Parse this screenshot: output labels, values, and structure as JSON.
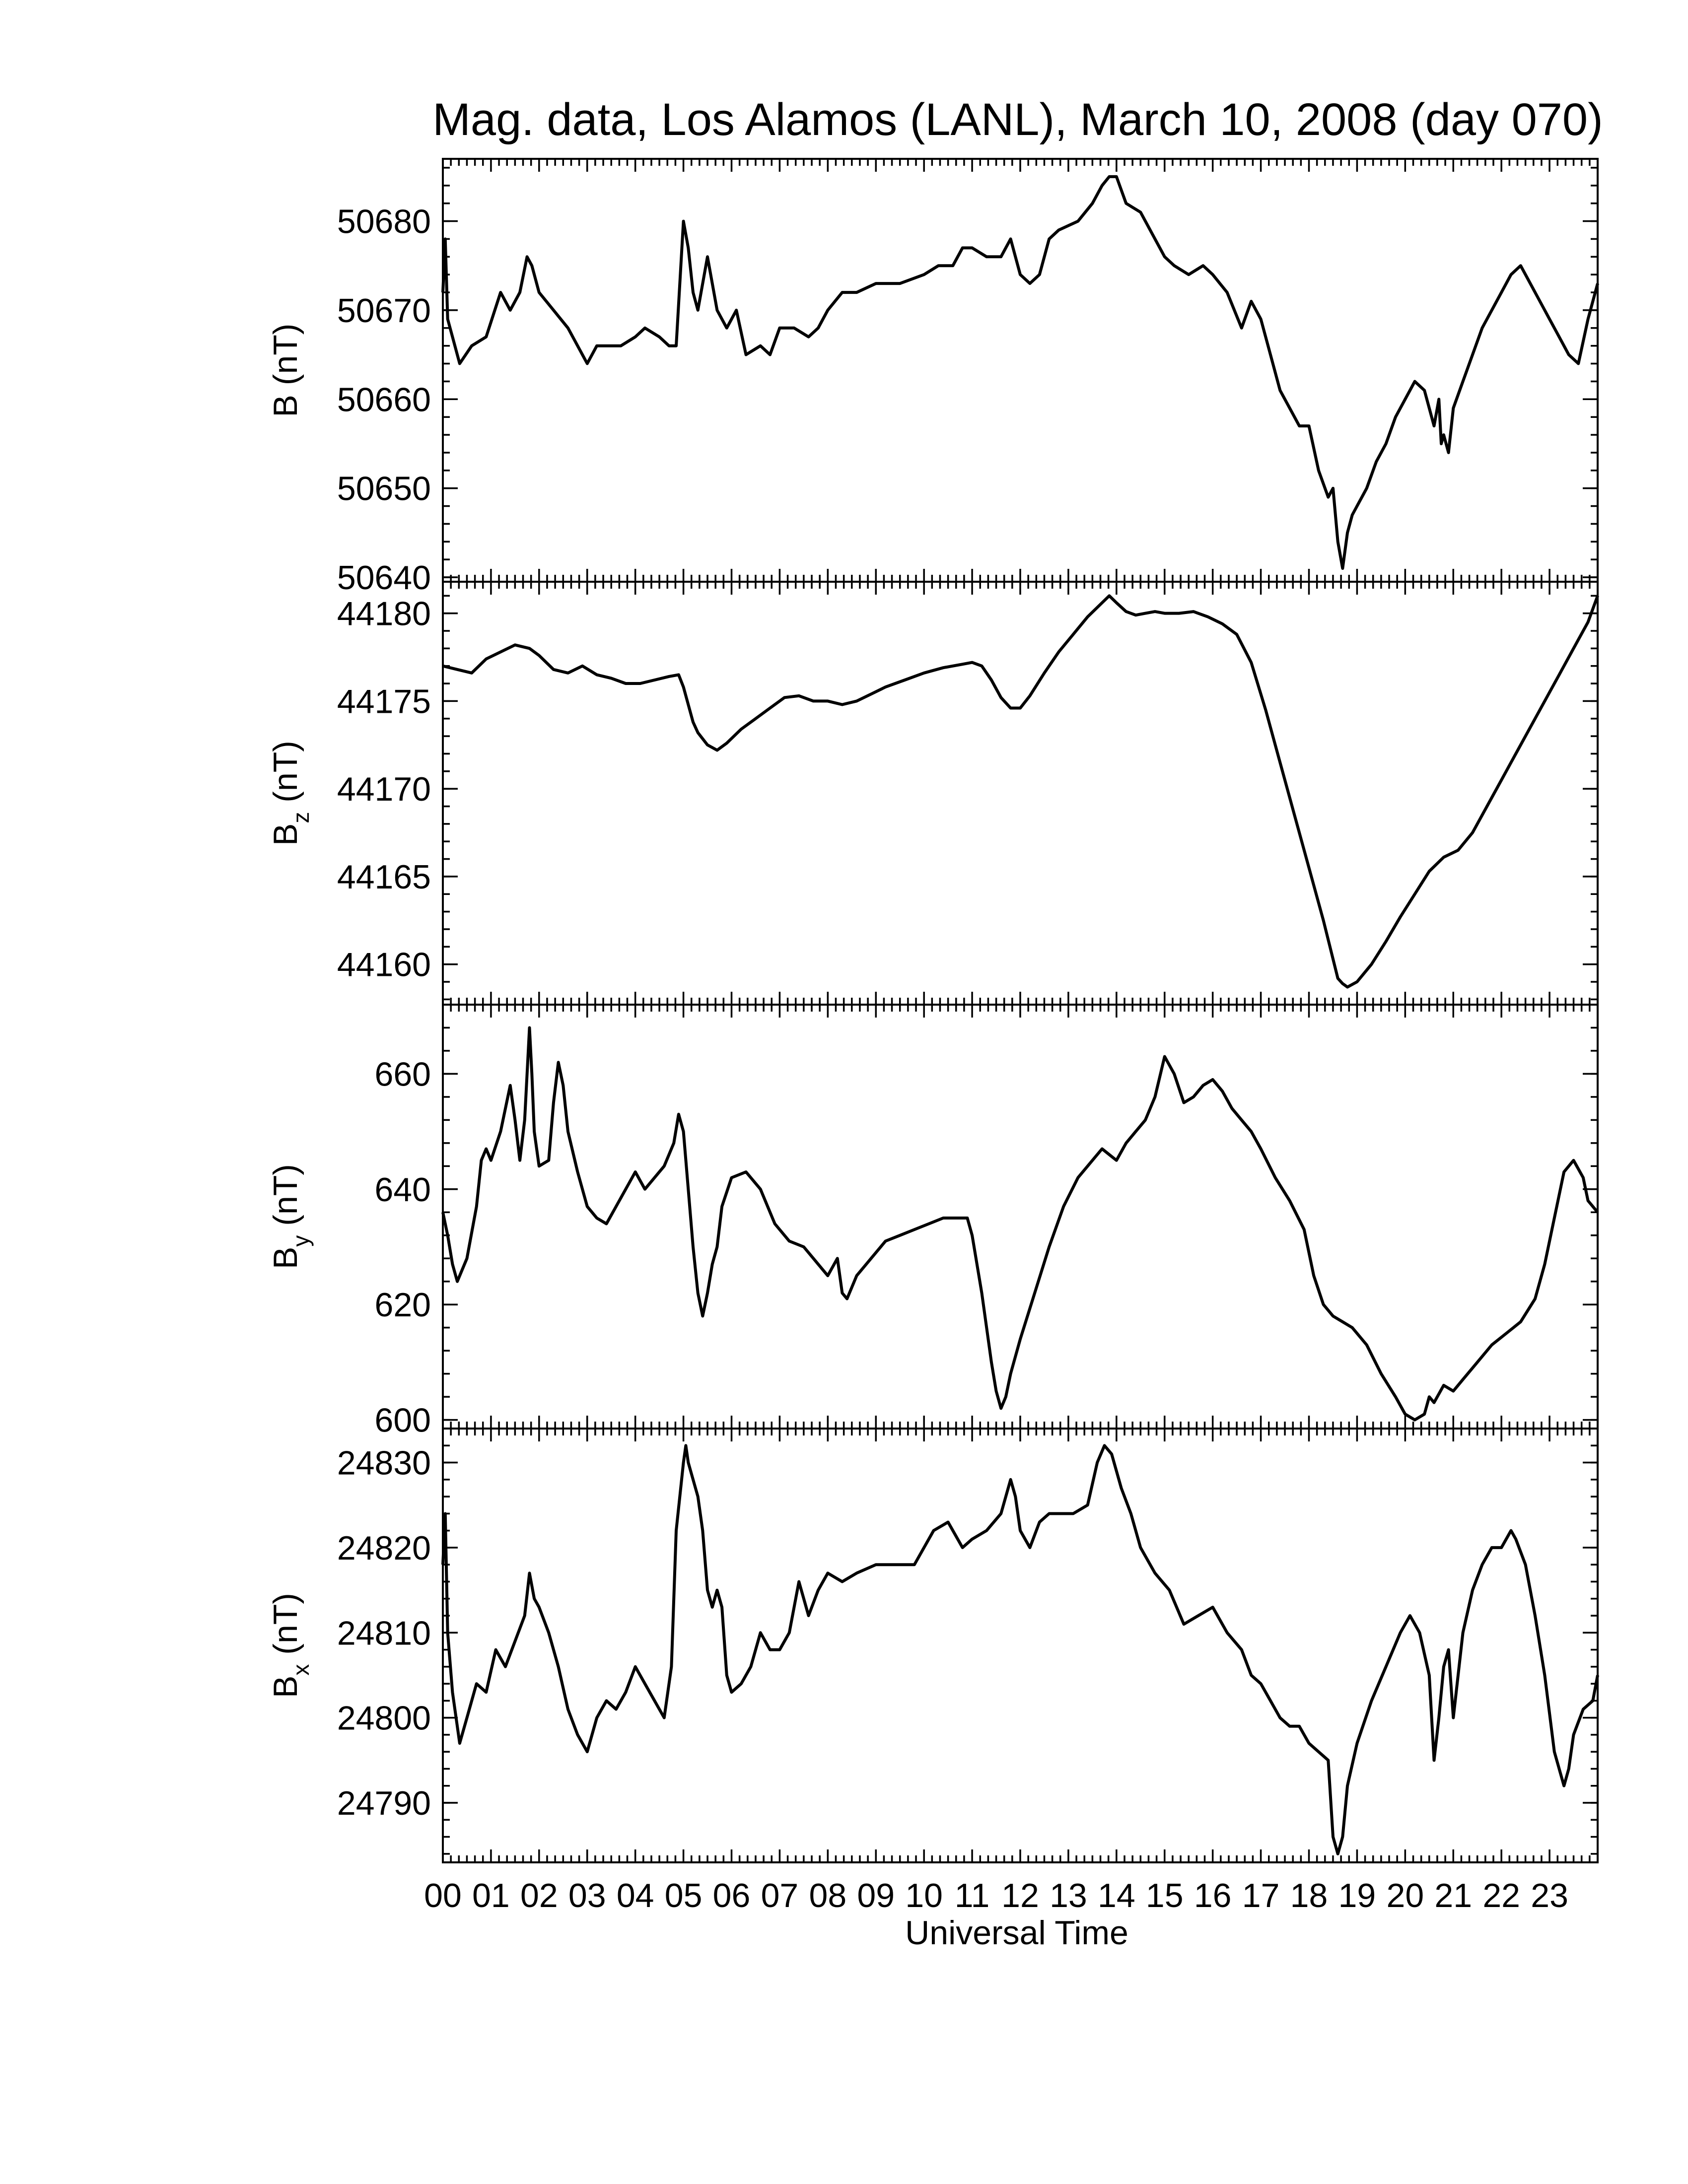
{
  "chart_data": {
    "type": "line",
    "title": "Mag. data, Los Alamos (LANL), March 10, 2008 (day 070)",
    "xlabel": "Universal Time",
    "xlim": [
      0,
      24
    ],
    "x_tick_labels": [
      "00",
      "01",
      "02",
      "03",
      "04",
      "05",
      "06",
      "07",
      "08",
      "09",
      "10",
      "11",
      "12",
      "13",
      "14",
      "15",
      "16",
      "17",
      "18",
      "19",
      "20",
      "21",
      "22",
      "23"
    ],
    "panels": [
      {
        "ylabel_main": "B",
        "ylabel_sub": "",
        "ylabel_unit": " (nT)",
        "ylim": [
          50639.5,
          50687
        ],
        "yticks": [
          50640,
          50650,
          50660,
          50670,
          50680
        ],
        "x": [
          0.0,
          0.05,
          0.1,
          0.2,
          0.35,
          0.6,
          0.9,
          1.2,
          1.4,
          1.6,
          1.75,
          1.85,
          2.0,
          2.3,
          2.6,
          2.9,
          3.0,
          3.2,
          3.4,
          3.7,
          4.0,
          4.2,
          4.5,
          4.7,
          4.85,
          5.0,
          5.1,
          5.2,
          5.3,
          5.5,
          5.7,
          5.9,
          6.0,
          6.1,
          6.3,
          6.6,
          6.8,
          7.0,
          7.3,
          7.6,
          7.8,
          8.0,
          8.3,
          8.6,
          9.0,
          9.5,
          10.0,
          10.3,
          10.6,
          10.8,
          11.0,
          11.3,
          11.6,
          11.8,
          12.0,
          12.2,
          12.4,
          12.6,
          12.8,
          13.2,
          13.5,
          13.7,
          13.85,
          14.0,
          14.2,
          14.5,
          14.8,
          15.0,
          15.2,
          15.5,
          15.8,
          16.0,
          16.3,
          16.6,
          16.8,
          17.0,
          17.2,
          17.4,
          17.6,
          17.8,
          18.0,
          18.2,
          18.4,
          18.5,
          18.6,
          18.7,
          18.8,
          18.9,
          19.0,
          19.2,
          19.4,
          19.6,
          19.8,
          20.0,
          20.2,
          20.4,
          20.5,
          20.6,
          20.7,
          20.75,
          20.8,
          20.9,
          21.0,
          21.2,
          21.4,
          21.6,
          21.8,
          22.0,
          22.2,
          22.4,
          22.6,
          22.8,
          23.0,
          23.2,
          23.4,
          23.6,
          23.8,
          24.0
        ],
        "y": [
          50672,
          50678,
          50669,
          50667,
          50664,
          50666,
          50667,
          50672,
          50670,
          50672,
          50676,
          50675,
          50672,
          50670,
          50668,
          50665,
          50664,
          50666,
          50666,
          50666,
          50667,
          50668,
          50667,
          50666,
          50666,
          50680,
          50677,
          50672,
          50670,
          50676,
          50670,
          50668,
          50669,
          50670,
          50665,
          50666,
          50665,
          50668,
          50668,
          50667,
          50668,
          50670,
          50672,
          50672,
          50673,
          50673,
          50674,
          50675,
          50675,
          50677,
          50677,
          50676,
          50676,
          50678,
          50674,
          50673,
          50674,
          50678,
          50679,
          50680,
          50682,
          50684,
          50685,
          50685,
          50682,
          50681,
          50678,
          50676,
          50675,
          50674,
          50675,
          50674,
          50672,
          50668,
          50671,
          50669,
          50665,
          50661,
          50659,
          50657,
          50657,
          50652,
          50649,
          50650,
          50644,
          50641,
          50645,
          50647,
          50648,
          50650,
          50653,
          50655,
          50658,
          50660,
          50662,
          50661,
          50659,
          50657,
          50660,
          50655,
          50656,
          50654,
          50659,
          50662,
          50665,
          50668,
          50670,
          50672,
          50674,
          50675,
          50673,
          50671,
          50669,
          50667,
          50665,
          50664,
          50669,
          50673
        ]
      },
      {
        "ylabel_main": "B",
        "ylabel_sub": "z",
        "ylabel_unit": " (nT)",
        "ylim": [
          44157.7,
          44181.8
        ],
        "yticks": [
          44160,
          44165,
          44170,
          44175,
          44180
        ],
        "x": [
          0.0,
          0.3,
          0.6,
          0.9,
          1.2,
          1.5,
          1.8,
          2.0,
          2.3,
          2.6,
          2.9,
          3.2,
          3.5,
          3.8,
          4.1,
          4.4,
          4.7,
          4.9,
          5.0,
          5.1,
          5.2,
          5.3,
          5.5,
          5.7,
          5.9,
          6.2,
          6.5,
          6.8,
          7.1,
          7.4,
          7.7,
          8.0,
          8.3,
          8.6,
          8.9,
          9.2,
          9.6,
          10.0,
          10.4,
          10.8,
          11.0,
          11.2,
          11.4,
          11.6,
          11.8,
          12.0,
          12.2,
          12.5,
          12.8,
          13.1,
          13.4,
          13.7,
          13.85,
          14.0,
          14.2,
          14.4,
          14.6,
          14.8,
          15.0,
          15.3,
          15.6,
          15.9,
          16.2,
          16.5,
          16.8,
          17.1,
          17.4,
          17.7,
          18.0,
          18.3,
          18.5,
          18.6,
          18.7,
          18.8,
          19.0,
          19.3,
          19.6,
          19.9,
          20.2,
          20.5,
          20.8,
          21.1,
          21.4,
          21.7,
          22.0,
          22.3,
          22.6,
          22.9,
          23.2,
          23.5,
          23.8,
          24.0
        ],
        "y": [
          44177.0,
          44176.8,
          44176.6,
          44177.4,
          44177.8,
          44178.2,
          44178.0,
          44177.6,
          44176.8,
          44176.6,
          44177.0,
          44176.5,
          44176.3,
          44176.0,
          44176.0,
          44176.2,
          44176.4,
          44176.5,
          44175.8,
          44174.8,
          44173.8,
          44173.2,
          44172.5,
          44172.2,
          44172.6,
          44173.4,
          44174.0,
          44174.6,
          44175.2,
          44175.3,
          44175.0,
          44175.0,
          44174.8,
          44175.0,
          44175.4,
          44175.8,
          44176.2,
          44176.6,
          44176.9,
          44177.1,
          44177.2,
          44177.0,
          44176.2,
          44175.2,
          44174.6,
          44174.6,
          44175.3,
          44176.6,
          44177.8,
          44178.8,
          44179.8,
          44180.6,
          44181.0,
          44180.6,
          44180.1,
          44179.9,
          44180.0,
          44180.1,
          44180.0,
          44180.0,
          44180.1,
          44179.8,
          44179.4,
          44178.8,
          44177.2,
          44174.5,
          44171.5,
          44168.5,
          44165.5,
          44162.5,
          44160.3,
          44159.2,
          44158.9,
          44158.7,
          44159.0,
          44160.0,
          44161.3,
          44162.7,
          44164.0,
          44165.3,
          44166.1,
          44166.5,
          44167.5,
          44169.0,
          44170.5,
          44172.0,
          44173.5,
          44175.0,
          44176.5,
          44178.0,
          44179.5,
          44181.0
        ]
      },
      {
        "ylabel_main": "B",
        "ylabel_sub": "y",
        "ylabel_unit": " (nT)",
        "ylim": [
          598.5,
          672
        ],
        "yticks": [
          600,
          620,
          640,
          660
        ],
        "x": [
          0.0,
          0.1,
          0.2,
          0.3,
          0.5,
          0.7,
          0.8,
          0.9,
          1.0,
          1.2,
          1.4,
          1.5,
          1.6,
          1.7,
          1.8,
          1.85,
          1.9,
          2.0,
          2.2,
          2.3,
          2.4,
          2.5,
          2.6,
          2.8,
          3.0,
          3.2,
          3.4,
          3.6,
          3.8,
          4.0,
          4.2,
          4.4,
          4.6,
          4.8,
          4.9,
          5.0,
          5.1,
          5.2,
          5.3,
          5.4,
          5.5,
          5.6,
          5.7,
          5.8,
          6.0,
          6.3,
          6.6,
          6.9,
          7.2,
          7.5,
          7.8,
          8.0,
          8.2,
          8.3,
          8.4,
          8.6,
          8.9,
          9.2,
          9.5,
          9.8,
          10.1,
          10.4,
          10.7,
          10.9,
          11.0,
          11.2,
          11.4,
          11.5,
          11.6,
          11.7,
          11.8,
          12.0,
          12.3,
          12.6,
          12.9,
          13.2,
          13.5,
          13.7,
          13.85,
          14.0,
          14.2,
          14.4,
          14.6,
          14.8,
          15.0,
          15.2,
          15.4,
          15.6,
          15.8,
          16.0,
          16.2,
          16.4,
          16.6,
          16.8,
          17.0,
          17.3,
          17.6,
          17.9,
          18.1,
          18.3,
          18.5,
          18.7,
          18.9,
          19.2,
          19.5,
          19.8,
          20.0,
          20.2,
          20.4,
          20.5,
          20.6,
          20.8,
          21.0,
          21.2,
          21.5,
          21.8,
          22.1,
          22.4,
          22.7,
          22.9,
          23.1,
          23.3,
          23.5,
          23.7,
          23.8,
          24.0
        ],
        "y": [
          636,
          632,
          627,
          624,
          628,
          637,
          645,
          647,
          645,
          650,
          658,
          652,
          645,
          652,
          668,
          660,
          650,
          644,
          645,
          655,
          662,
          658,
          650,
          643,
          637,
          635,
          634,
          637,
          640,
          643,
          640,
          642,
          644,
          648,
          653,
          650,
          640,
          630,
          622,
          618,
          622,
          627,
          630,
          637,
          642,
          643,
          640,
          634,
          631,
          630,
          627,
          625,
          628,
          622,
          621,
          625,
          628,
          631,
          632,
          633,
          634,
          635,
          635,
          635,
          632,
          622,
          610,
          605,
          602,
          604,
          608,
          614,
          622,
          630,
          637,
          642,
          645,
          647,
          646,
          645,
          648,
          650,
          652,
          656,
          663,
          660,
          655,
          656,
          658,
          659,
          657,
          654,
          652,
          650,
          647,
          642,
          638,
          633,
          625,
          620,
          618,
          617,
          616,
          613,
          608,
          604,
          601,
          600,
          601,
          604,
          603,
          606,
          605,
          607,
          610,
          613,
          615,
          617,
          621,
          627,
          635,
          643,
          645,
          642,
          638,
          636
        ]
      },
      {
        "ylabel_main": "B",
        "ylabel_sub": "x",
        "ylabel_unit": " (nT)",
        "ylim": [
          24783,
          24834
        ],
        "yticks": [
          24790,
          24800,
          24810,
          24820,
          24830
        ],
        "x": [
          0.0,
          0.05,
          0.1,
          0.2,
          0.35,
          0.5,
          0.7,
          0.9,
          1.1,
          1.3,
          1.5,
          1.7,
          1.8,
          1.9,
          2.0,
          2.2,
          2.4,
          2.6,
          2.8,
          3.0,
          3.2,
          3.4,
          3.6,
          3.8,
          4.0,
          4.2,
          4.4,
          4.6,
          4.75,
          4.85,
          5.0,
          5.05,
          5.1,
          5.2,
          5.3,
          5.4,
          5.5,
          5.6,
          5.7,
          5.8,
          5.9,
          6.0,
          6.2,
          6.4,
          6.6,
          6.8,
          7.0,
          7.2,
          7.4,
          7.6,
          7.8,
          8.0,
          8.3,
          8.6,
          9.0,
          9.4,
          9.8,
          10.2,
          10.5,
          10.8,
          11.0,
          11.3,
          11.6,
          11.8,
          11.9,
          12.0,
          12.2,
          12.4,
          12.6,
          12.8,
          13.1,
          13.4,
          13.6,
          13.75,
          13.9,
          14.1,
          14.3,
          14.5,
          14.8,
          15.1,
          15.4,
          15.7,
          16.0,
          16.3,
          16.6,
          16.8,
          17.0,
          17.2,
          17.4,
          17.6,
          17.8,
          18.0,
          18.2,
          18.4,
          18.5,
          18.6,
          18.7,
          18.8,
          19.0,
          19.3,
          19.6,
          19.9,
          20.1,
          20.3,
          20.5,
          20.6,
          20.7,
          20.8,
          20.9,
          21.0,
          21.2,
          21.4,
          21.6,
          21.8,
          22.0,
          22.2,
          22.3,
          22.5,
          22.7,
          22.9,
          23.1,
          23.3,
          23.4,
          23.5,
          23.7,
          23.9,
          24.0
        ],
        "y": [
          24818,
          24824,
          24810,
          24803,
          24797,
          24800,
          24804,
          24803,
          24808,
          24806,
          24809,
          24812,
          24817,
          24814,
          24813,
          24810,
          24806,
          24801,
          24798,
          24796,
          24800,
          24802,
          24801,
          24803,
          24806,
          24804,
          24802,
          24800,
          24806,
          24822,
          24830,
          24832,
          24830,
          24828,
          24826,
          24822,
          24815,
          24813,
          24815,
          24813,
          24805,
          24803,
          24804,
          24806,
          24810,
          24808,
          24808,
          24810,
          24816,
          24812,
          24815,
          24817,
          24816,
          24817,
          24818,
          24818,
          24818,
          24822,
          24823,
          24820,
          24821,
          24822,
          24824,
          24828,
          24826,
          24822,
          24820,
          24823,
          24824,
          24824,
          24824,
          24825,
          24830,
          24832,
          24831,
          24827,
          24824,
          24820,
          24817,
          24815,
          24811,
          24812,
          24813,
          24810,
          24808,
          24805,
          24804,
          24802,
          24800,
          24799,
          24799,
          24797,
          24796,
          24795,
          24786,
          24784,
          24786,
          24792,
          24797,
          24802,
          24806,
          24810,
          24812,
          24810,
          24805,
          24795,
          24800,
          24806,
          24808,
          24800,
          24810,
          24815,
          24818,
          24820,
          24820,
          24822,
          24821,
          24818,
          24812,
          24805,
          24796,
          24792,
          24794,
          24798,
          24801,
          24802,
          24805
        ]
      }
    ]
  }
}
